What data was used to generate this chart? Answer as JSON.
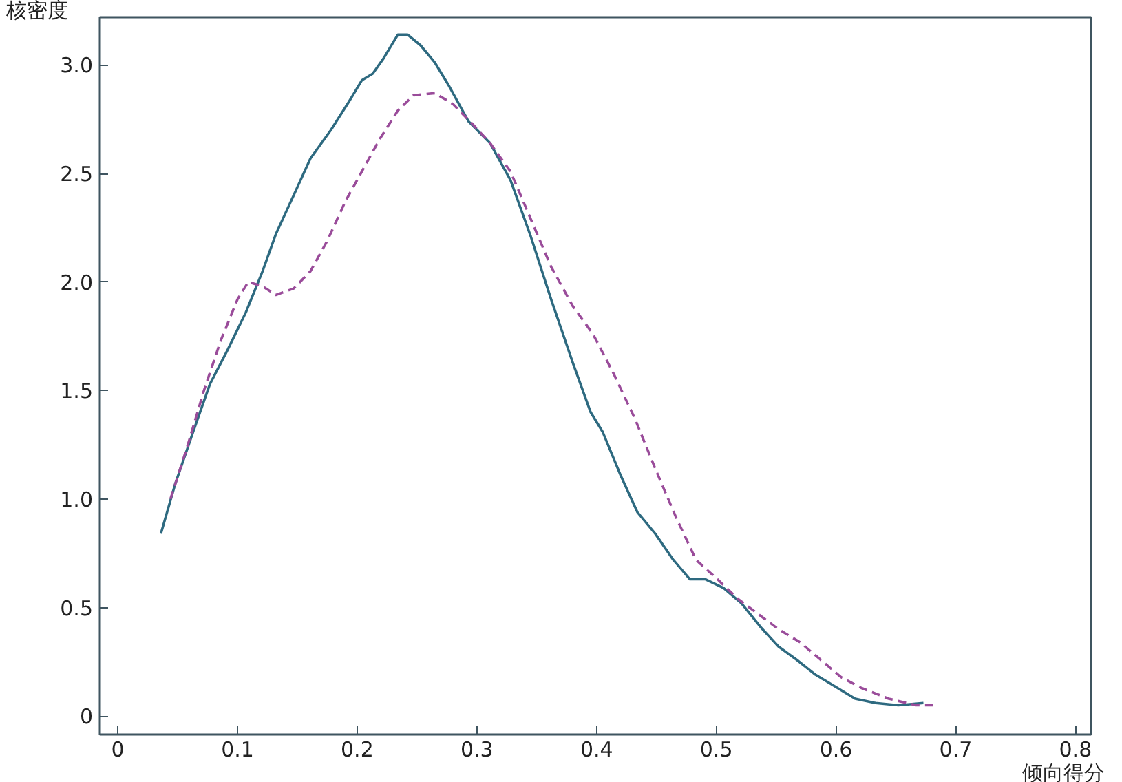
{
  "chart_data": {
    "type": "line",
    "xlabel": "倾向得分",
    "ylabel": "核密度",
    "xlim": [
      -0.015,
      0.813
    ],
    "ylim": [
      -0.085,
      3.22
    ],
    "xticks": [
      0,
      0.1,
      0.2,
      0.3,
      0.4,
      0.5,
      0.6,
      0.7,
      0.8
    ],
    "yticks": [
      {
        "value": 0,
        "label": "0"
      },
      {
        "value": 0.5,
        "label": "0.5"
      },
      {
        "value": 1,
        "label": "1.0"
      },
      {
        "value": 1.5,
        "label": "1.5"
      },
      {
        "value": 2,
        "label": "2.0"
      },
      {
        "value": 2.5,
        "label": "2.5"
      },
      {
        "value": 3,
        "label": "3.0"
      }
    ],
    "grid": false,
    "series": [
      {
        "color": "#2e6a80",
        "line_style": "solid",
        "x": [
          0.036,
          0.048,
          0.063,
          0.077,
          0.092,
          0.107,
          0.121,
          0.132,
          0.147,
          0.161,
          0.178,
          0.193,
          0.204,
          0.213,
          0.222,
          0.234,
          0.242,
          0.253,
          0.265,
          0.276,
          0.293,
          0.311,
          0.328,
          0.345,
          0.362,
          0.38,
          0.395,
          0.405,
          0.42,
          0.434,
          0.449,
          0.464,
          0.478,
          0.491,
          0.506,
          0.521,
          0.537,
          0.552,
          0.567,
          0.583,
          0.598,
          0.616,
          0.633,
          0.652,
          0.673
        ],
        "values": [
          0.84,
          1.07,
          1.31,
          1.53,
          1.69,
          1.86,
          2.05,
          2.22,
          2.4,
          2.57,
          2.7,
          2.83,
          2.93,
          2.96,
          3.03,
          3.14,
          3.14,
          3.09,
          3.01,
          2.91,
          2.74,
          2.64,
          2.47,
          2.21,
          1.92,
          1.63,
          1.4,
          1.31,
          1.11,
          0.94,
          0.84,
          0.72,
          0.63,
          0.63,
          0.59,
          0.52,
          0.41,
          0.32,
          0.26,
          0.19,
          0.14,
          0.08,
          0.06,
          0.05,
          0.06
        ]
      },
      {
        "color": "#9a4c9a",
        "line_style": "dashed",
        "x": [
          0.044,
          0.058,
          0.072,
          0.086,
          0.1,
          0.109,
          0.121,
          0.132,
          0.147,
          0.161,
          0.175,
          0.19,
          0.204,
          0.219,
          0.234,
          0.247,
          0.265,
          0.28,
          0.296,
          0.311,
          0.328,
          0.345,
          0.362,
          0.38,
          0.397,
          0.414,
          0.432,
          0.449,
          0.466,
          0.483,
          0.501,
          0.518,
          0.535,
          0.552,
          0.57,
          0.587,
          0.604,
          0.621,
          0.644,
          0.667,
          0.684
        ],
        "values": [
          1.0,
          1.24,
          1.5,
          1.73,
          1.92,
          2.0,
          1.98,
          1.94,
          1.97,
          2.05,
          2.19,
          2.37,
          2.51,
          2.66,
          2.79,
          2.86,
          2.87,
          2.82,
          2.73,
          2.64,
          2.51,
          2.29,
          2.07,
          1.89,
          1.76,
          1.58,
          1.37,
          1.14,
          0.92,
          0.72,
          0.63,
          0.54,
          0.47,
          0.4,
          0.34,
          0.26,
          0.18,
          0.13,
          0.08,
          0.05,
          0.05
        ]
      }
    ]
  }
}
